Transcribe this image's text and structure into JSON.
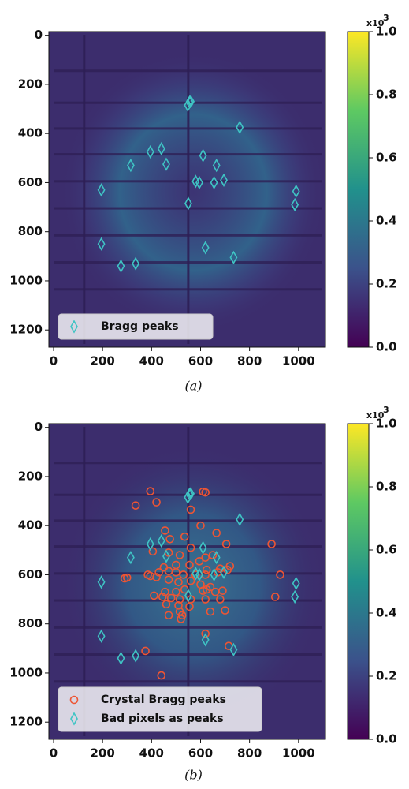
{
  "chart_data": [
    {
      "type": "scatter",
      "caption": "(a)",
      "xlim": [
        0,
        1110
      ],
      "ylim": [
        1270,
        -15
      ],
      "xticks": [
        0,
        200,
        400,
        600,
        800,
        1000
      ],
      "yticks": [
        0,
        200,
        400,
        600,
        800,
        1000,
        1200
      ],
      "legend": "lower left",
      "colorbar": {
        "lim": [
          0,
          1
        ],
        "ticks": [
          {
            "value": 0,
            "label": "0.0"
          },
          {
            "value": 0.2,
            "label": "0.2"
          },
          {
            "value": 0.4,
            "label": "0.4"
          },
          {
            "value": 0.6,
            "label": "0.6"
          },
          {
            "value": 0.8,
            "label": "0.8"
          },
          {
            "value": 1,
            "label": "1.0"
          }
        ],
        "offset": "x10",
        "exponent": "3"
      },
      "series": [
        {
          "name": "Bragg peaks",
          "color": "#3fc4c4",
          "marker": "diamond",
          "x": [
            548,
            555,
            560,
            760,
            395,
            440,
            460,
            315,
            610,
            665,
            195,
            580,
            595,
            655,
            695,
            990,
            985,
            550,
            195,
            620,
            735,
            335,
            275
          ],
          "y": [
            285,
            272,
            270,
            375,
            475,
            462,
            525,
            530,
            490,
            530,
            630,
            595,
            600,
            600,
            590,
            635,
            690,
            685,
            850,
            865,
            905,
            930,
            940
          ]
        }
      ]
    },
    {
      "type": "scatter",
      "caption": "(b)",
      "xlim": [
        0,
        1110
      ],
      "ylim": [
        1270,
        -15
      ],
      "xticks": [
        0,
        200,
        400,
        600,
        800,
        1000
      ],
      "yticks": [
        0,
        200,
        400,
        600,
        800,
        1000,
        1200
      ],
      "legend": "lower left",
      "colorbar": {
        "lim": [
          0,
          1
        ],
        "ticks": [
          {
            "value": 0,
            "label": "0.0"
          },
          {
            "value": 0.2,
            "label": "0.2"
          },
          {
            "value": 0.4,
            "label": "0.4"
          },
          {
            "value": 0.6,
            "label": "0.6"
          },
          {
            "value": 0.8,
            "label": "0.8"
          },
          {
            "value": 1,
            "label": "1.0"
          }
        ],
        "offset": "x10",
        "exponent": "3"
      },
      "series": [
        {
          "name": "Crystal Bragg peaks",
          "color": "#ee5533",
          "marker": "circle",
          "x": [
            395,
            620,
            610,
            420,
            335,
            560,
            600,
            665,
            475,
            535,
            455,
            705,
            890,
            560,
            405,
            470,
            515,
            650,
            620,
            595,
            720,
            710,
            625,
            670,
            680,
            555,
            500,
            450,
            430,
            470,
            500,
            530,
            580,
            620,
            395,
            420,
            385,
            290,
            300,
            470,
            510,
            560,
            600,
            640,
            625,
            610,
            660,
            690,
            925,
            535,
            500,
            455,
            410,
            445,
            480,
            515,
            560,
            620,
            680,
            460,
            510,
            555,
            470,
            515,
            525,
            640,
            700,
            905,
            520,
            620,
            715,
            375,
            440
          ],
          "y": [
            260,
            265,
            262,
            305,
            318,
            335,
            400,
            430,
            455,
            445,
            420,
            475,
            475,
            490,
            505,
            510,
            520,
            520,
            530,
            545,
            565,
            580,
            580,
            590,
            575,
            560,
            560,
            570,
            590,
            585,
            590,
            600,
            600,
            600,
            605,
            610,
            600,
            615,
            612,
            620,
            630,
            625,
            640,
            650,
            660,
            665,
            670,
            665,
            600,
            660,
            670,
            670,
            685,
            690,
            695,
            700,
            700,
            700,
            700,
            720,
            725,
            730,
            765,
            750,
            765,
            750,
            745,
            690,
            780,
            840,
            890,
            910,
            1010
          ]
        },
        {
          "name": "Bad pixels as peaks",
          "color": "#3fc4c4",
          "marker": "diamond",
          "x": [
            548,
            555,
            560,
            760,
            395,
            440,
            460,
            315,
            610,
            665,
            195,
            580,
            595,
            655,
            695,
            990,
            985,
            550,
            195,
            620,
            735,
            335,
            275
          ],
          "y": [
            285,
            272,
            270,
            375,
            475,
            462,
            525,
            530,
            490,
            530,
            630,
            595,
            600,
            600,
            590,
            635,
            690,
            685,
            850,
            865,
            905,
            930,
            940
          ]
        }
      ]
    }
  ]
}
